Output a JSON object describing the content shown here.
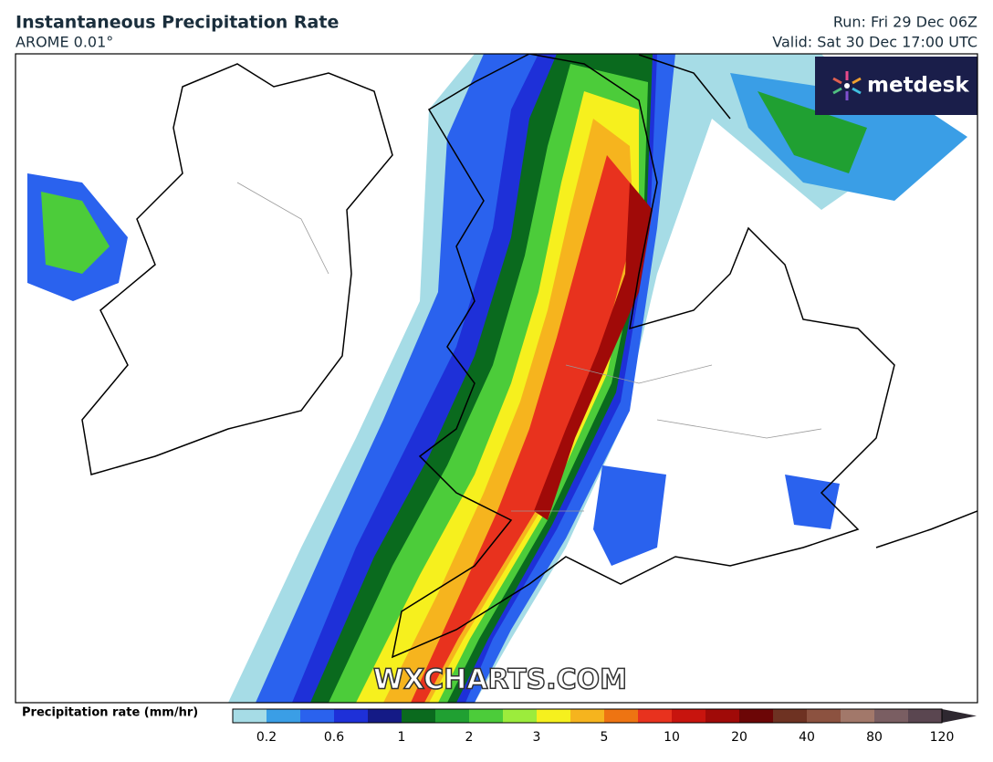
{
  "header": {
    "title": "Instantaneous Precipitation Rate",
    "model": "AROME 0.01°",
    "run": "Run: Fri 29 Dec 06Z",
    "valid": "Valid: Sat 30 Dec 17:00 UTC"
  },
  "logo": "metdesk",
  "watermark": "WXCHARTS.COM",
  "legend": {
    "label": "Precipitation rate (mm/hr)",
    "colors": [
      "#a6dce6",
      "#3a9ee6",
      "#2a62ee",
      "#1e30d8",
      "#141a86",
      "#0a6a1e",
      "#20a032",
      "#4ccc3a",
      "#9cec3c",
      "#f6f01e",
      "#f6b41e",
      "#ee7412",
      "#e8321e",
      "#c8140e",
      "#a00a08",
      "#6c0606",
      "#6e3222",
      "#8c5240",
      "#a2786a",
      "#7a5e62",
      "#5a4650"
    ],
    "arrow_color": "#2e2830",
    "ticks": [
      0.2,
      0.6,
      1,
      2,
      3,
      5,
      10,
      20,
      40,
      80,
      120
    ]
  }
}
